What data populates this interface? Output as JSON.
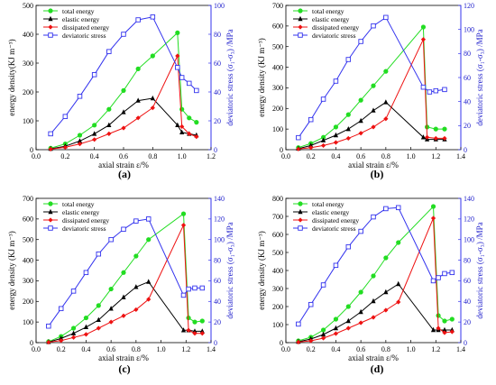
{
  "panel_labels": [
    "(a)",
    "(b)",
    "(c)",
    "(d)"
  ],
  "chart_data": [
    {
      "type": "line",
      "panel": "(a)",
      "xlabel": "axial strain  ε/%",
      "ylabel": "energy density(KJ m⁻³)",
      "y2label": "deviatoric stress  (σ₁-σ₃) /MPa",
      "xlim": [
        0,
        1.2
      ],
      "xticks": [
        "0.0",
        "0.2",
        "0.4",
        "0.6",
        "0.8",
        "1.0",
        "1.2"
      ],
      "ylim": [
        0,
        500
      ],
      "yticks": [
        "0",
        "100",
        "200",
        "300",
        "400",
        "500"
      ],
      "y2lim": [
        0,
        100
      ],
      "y2ticks": [
        "0",
        "20",
        "40",
        "60",
        "80",
        "100"
      ],
      "legend_position": "top-left",
      "series": [
        {
          "name": "total energy",
          "axis": "left",
          "color": "#22dd22",
          "marker": "circle",
          "x": [
            0.1,
            0.2,
            0.3,
            0.4,
            0.5,
            0.6,
            0.7,
            0.8,
            0.97,
            1.0,
            1.05,
            1.1
          ],
          "y": [
            5,
            20,
            50,
            85,
            140,
            205,
            280,
            325,
            405,
            140,
            110,
            95
          ]
        },
        {
          "name": "elastic energy",
          "axis": "left",
          "color": "#000000",
          "marker": "triangle",
          "x": [
            0.1,
            0.2,
            0.3,
            0.4,
            0.5,
            0.6,
            0.7,
            0.8,
            0.97,
            1.0,
            1.05,
            1.1
          ],
          "y": [
            3,
            12,
            30,
            55,
            85,
            130,
            170,
            178,
            85,
            60,
            55,
            50
          ]
        },
        {
          "name": "dissipated energy",
          "axis": "left",
          "color": "#ee1111",
          "marker": "diamond",
          "x": [
            0.1,
            0.2,
            0.3,
            0.4,
            0.5,
            0.6,
            0.7,
            0.8,
            0.97,
            1.0,
            1.05,
            1.1
          ],
          "y": [
            2,
            8,
            20,
            35,
            55,
            75,
            110,
            145,
            325,
            80,
            55,
            45
          ]
        },
        {
          "name": "deviatoric stress",
          "axis": "right",
          "color": "#3333ee",
          "marker": "square",
          "x": [
            0.1,
            0.2,
            0.3,
            0.4,
            0.5,
            0.6,
            0.7,
            0.8,
            0.97,
            1.0,
            1.05,
            1.1
          ],
          "y": [
            11,
            23,
            37,
            52,
            68,
            80,
            90,
            92,
            57,
            50,
            46,
            41
          ]
        }
      ]
    },
    {
      "type": "line",
      "panel": "(b)",
      "xlabel": "axial strain  ε/%",
      "ylabel": "energy density (KJ m⁻³)",
      "y2label": "deviatoric stress  (σ₁-σ₃) /MPa",
      "xlim": [
        0,
        1.4
      ],
      "xticks": [
        "0.0",
        "0.2",
        "0.4",
        "0.6",
        "0.8",
        "1.0",
        "1.2",
        "1.4"
      ],
      "ylim": [
        0,
        700
      ],
      "yticks": [
        "0",
        "100",
        "200",
        "300",
        "400",
        "500",
        "600",
        "700"
      ],
      "y2lim": [
        0,
        120
      ],
      "y2ticks": [
        "0",
        "20",
        "40",
        "60",
        "80",
        "100",
        "120"
      ],
      "legend_position": "top-left",
      "series": [
        {
          "name": "total energy",
          "axis": "left",
          "color": "#22dd22",
          "marker": "circle",
          "x": [
            0.1,
            0.2,
            0.3,
            0.4,
            0.5,
            0.6,
            0.7,
            0.8,
            1.1,
            1.13,
            1.2,
            1.27
          ],
          "y": [
            10,
            30,
            60,
            110,
            170,
            240,
            310,
            380,
            595,
            110,
            100,
            100
          ]
        },
        {
          "name": "elastic energy",
          "axis": "left",
          "color": "#000000",
          "marker": "triangle",
          "x": [
            0.1,
            0.2,
            0.3,
            0.4,
            0.5,
            0.6,
            0.7,
            0.8,
            1.1,
            1.13,
            1.2,
            1.27
          ],
          "y": [
            5,
            20,
            45,
            70,
            100,
            140,
            190,
            230,
            60,
            50,
            50,
            50
          ]
        },
        {
          "name": "dissipated energy",
          "axis": "left",
          "color": "#ee1111",
          "marker": "diamond",
          "x": [
            0.1,
            0.2,
            0.3,
            0.4,
            0.5,
            0.6,
            0.7,
            0.8,
            1.1,
            1.13,
            1.2,
            1.27
          ],
          "y": [
            3,
            10,
            20,
            35,
            55,
            80,
            110,
            150,
            535,
            60,
            55,
            55
          ]
        },
        {
          "name": "deviatoric stress",
          "axis": "right",
          "color": "#3333ee",
          "marker": "square",
          "x": [
            0.1,
            0.2,
            0.3,
            0.4,
            0.5,
            0.6,
            0.7,
            0.8,
            1.1,
            1.15,
            1.2,
            1.27
          ],
          "y": [
            10,
            25,
            42,
            57,
            75,
            90,
            103,
            110,
            52,
            48,
            49,
            50
          ]
        }
      ]
    },
    {
      "type": "line",
      "panel": "(c)",
      "xlabel": "axial strain  ε/%",
      "ylabel": "energy density (KJ m⁻³)",
      "y2label": "deviatoric stress  (σ₁-σ₃) /MPa",
      "xlim": [
        0,
        1.4
      ],
      "xticks": [
        "0.0",
        "0.2",
        "0.4",
        "0.6",
        "0.8",
        "1.0",
        "1.2",
        "1.4"
      ],
      "ylim": [
        0,
        700
      ],
      "yticks": [
        "0",
        "100",
        "200",
        "300",
        "400",
        "500",
        "600",
        "700"
      ],
      "y2lim": [
        0,
        140
      ],
      "y2ticks": [
        "0",
        "20",
        "40",
        "60",
        "80",
        "100",
        "120",
        "140"
      ],
      "legend_position": "top-left",
      "series": [
        {
          "name": "total energy",
          "axis": "left",
          "color": "#22dd22",
          "marker": "circle",
          "x": [
            0.1,
            0.2,
            0.3,
            0.4,
            0.5,
            0.6,
            0.7,
            0.8,
            0.9,
            1.18,
            1.22,
            1.27,
            1.33
          ],
          "y": [
            5,
            30,
            70,
            120,
            180,
            260,
            340,
            420,
            500,
            625,
            120,
            100,
            105
          ]
        },
        {
          "name": "elastic energy",
          "axis": "left",
          "color": "#000000",
          "marker": "triangle",
          "x": [
            0.1,
            0.2,
            0.3,
            0.4,
            0.5,
            0.6,
            0.7,
            0.8,
            0.9,
            1.18,
            1.22,
            1.27,
            1.33
          ],
          "y": [
            3,
            20,
            45,
            75,
            110,
            165,
            220,
            270,
            295,
            60,
            60,
            55,
            55
          ]
        },
        {
          "name": "dissipated energy",
          "axis": "left",
          "color": "#ee1111",
          "marker": "diamond",
          "x": [
            0.1,
            0.2,
            0.3,
            0.4,
            0.5,
            0.6,
            0.7,
            0.8,
            0.9,
            1.18,
            1.22,
            1.27,
            1.33
          ],
          "y": [
            2,
            10,
            25,
            40,
            70,
            100,
            130,
            160,
            210,
            570,
            60,
            45,
            45
          ]
        },
        {
          "name": "deviatoric stress",
          "axis": "right",
          "color": "#3333ee",
          "marker": "square",
          "x": [
            0.1,
            0.2,
            0.3,
            0.4,
            0.5,
            0.6,
            0.7,
            0.8,
            0.9,
            1.18,
            1.22,
            1.27,
            1.33
          ],
          "y": [
            16,
            33,
            50,
            68,
            86,
            100,
            110,
            118,
            120,
            46,
            52,
            53,
            53
          ]
        }
      ]
    },
    {
      "type": "line",
      "panel": "(d)",
      "xlabel": "axial strain  ε/%",
      "ylabel": "energy density (KJ m⁻³)",
      "y2label": "deviatoric stress  (σ₁-σ₃) /MPa",
      "xlim": [
        0,
        1.4
      ],
      "xticks": [
        "0.0",
        "0.2",
        "0.4",
        "0.6",
        "0.8",
        "1.0",
        "1.2",
        "1.4"
      ],
      "ylim": [
        0,
        800
      ],
      "yticks": [
        "0",
        "100",
        "200",
        "300",
        "400",
        "500",
        "600",
        "700",
        "800"
      ],
      "y2lim": [
        0,
        140
      ],
      "y2ticks": [
        "0",
        "20",
        "40",
        "60",
        "80",
        "100",
        "120",
        "140"
      ],
      "legend_position": "top-left",
      "series": [
        {
          "name": "total energy",
          "axis": "left",
          "color": "#22dd22",
          "marker": "circle",
          "x": [
            0.1,
            0.2,
            0.3,
            0.4,
            0.5,
            0.6,
            0.7,
            0.8,
            0.9,
            1.18,
            1.22,
            1.27,
            1.33
          ],
          "y": [
            10,
            30,
            70,
            130,
            200,
            280,
            370,
            470,
            555,
            755,
            150,
            120,
            130
          ]
        },
        {
          "name": "elastic energy",
          "axis": "left",
          "color": "#000000",
          "marker": "triangle",
          "x": [
            0.1,
            0.2,
            0.3,
            0.4,
            0.5,
            0.6,
            0.7,
            0.8,
            0.9,
            1.18,
            1.22,
            1.27,
            1.33
          ],
          "y": [
            5,
            20,
            45,
            80,
            120,
            170,
            230,
            280,
            325,
            70,
            70,
            70,
            70
          ]
        },
        {
          "name": "dissipated energy",
          "axis": "left",
          "color": "#ee1111",
          "marker": "diamond",
          "x": [
            0.1,
            0.2,
            0.3,
            0.4,
            0.5,
            0.6,
            0.7,
            0.8,
            0.9,
            1.18,
            1.22,
            1.27,
            1.33
          ],
          "y": [
            3,
            10,
            25,
            50,
            80,
            110,
            140,
            180,
            225,
            690,
            80,
            55,
            60
          ]
        },
        {
          "name": "deviatoric stress",
          "axis": "right",
          "color": "#3333ee",
          "marker": "square",
          "x": [
            0.1,
            0.2,
            0.3,
            0.4,
            0.5,
            0.6,
            0.7,
            0.8,
            0.9,
            1.18,
            1.22,
            1.27,
            1.33
          ],
          "y": [
            18,
            37,
            56,
            75,
            93,
            108,
            122,
            130,
            131,
            60,
            63,
            67,
            68
          ]
        }
      ]
    }
  ]
}
